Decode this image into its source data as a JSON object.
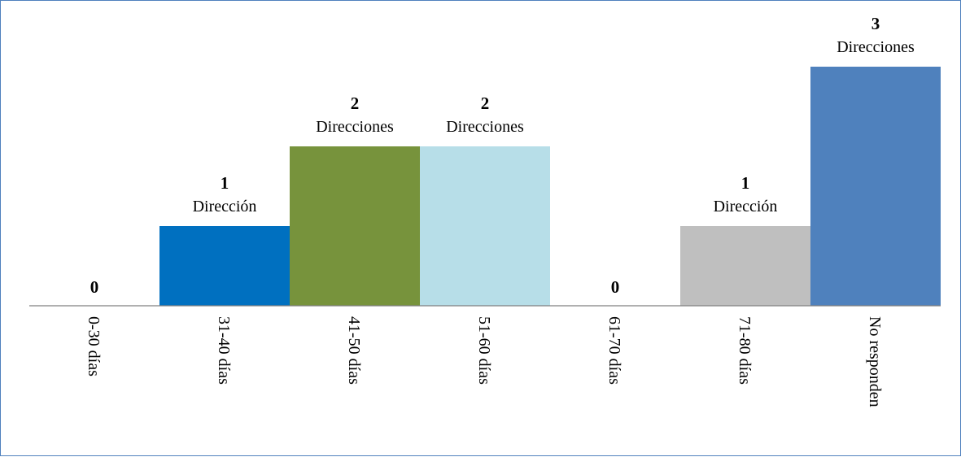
{
  "chart_data": {
    "type": "bar",
    "title": "",
    "xlabel": "",
    "ylabel": "",
    "categories": [
      "0-30 días",
      "31-40 días",
      "41-50 días",
      "51-60 días",
      "61-70 días",
      "71-80 días",
      "No responden"
    ],
    "values": [
      0,
      1,
      2,
      2,
      0,
      1,
      3
    ],
    "data_labels": [
      {
        "value": "0",
        "unit": ""
      },
      {
        "value": "1",
        "unit": "Dirección"
      },
      {
        "value": "2",
        "unit": "Direcciones"
      },
      {
        "value": "2",
        "unit": "Direcciones"
      },
      {
        "value": "0",
        "unit": ""
      },
      {
        "value": "1",
        "unit": "Dirección"
      },
      {
        "value": "3",
        "unit": "Direcciones"
      }
    ],
    "colors": [
      "#0070c0",
      "#0070c0",
      "#77933c",
      "#b7dee8",
      "#0070c0",
      "#bfbfbf",
      "#4f81bd"
    ],
    "ylim": [
      0,
      3
    ],
    "grid": false,
    "legend": "none"
  }
}
